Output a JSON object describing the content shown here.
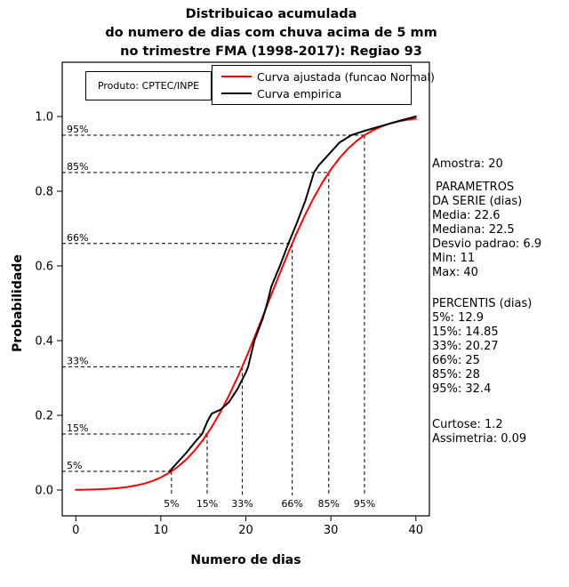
{
  "title": {
    "line1": "Distribuicao acumulada",
    "line2": "do numero de dias com chuva acima de 5 mm",
    "line3": "no trimestre FMA (1998-2017): Regiao 93"
  },
  "legend": {
    "product_label": "Produto: CPTEC/INPE",
    "entries": [
      {
        "key": "fitted",
        "label": "Curva ajustada (funcao Normal)",
        "color": "#ff0000"
      },
      {
        "key": "empirical",
        "label": "Curva empirica",
        "color": "#000000"
      }
    ]
  },
  "stats_panel": {
    "sample": "Amostra: 20",
    "params_header1": "PARAMETROS",
    "params_header2": "DA SERIE (dias)",
    "params": [
      "Media: 22.6",
      "Mediana: 22.5",
      "Desvio padrao: 6.9",
      "Min: 11",
      "Max: 40"
    ],
    "percentiles_header": "PERCENTIS (dias)",
    "percentiles": [
      "5%: 12.9",
      "15%: 14.85",
      "33%: 20.27",
      "66%: 25",
      "85%: 28",
      "95%: 32.4"
    ],
    "extra": [
      "Curtose: 1.2",
      "Assimetria: 0.09"
    ]
  },
  "axes": {
    "xlabel": "Numero de dias",
    "ylabel": "Probabilidade"
  },
  "chart_data": {
    "type": "line",
    "title": "Distribuicao acumulada do numero de dias com chuva acima de 5 mm no trimestre FMA (1998-2017): Regiao 93",
    "xlabel": "Numero de dias",
    "ylabel": "Probabilidade",
    "xlim": [
      0,
      40
    ],
    "ylim": [
      0,
      1
    ],
    "grid": false,
    "legend_position": "top",
    "x_ticks": [
      0,
      10,
      20,
      30,
      40
    ],
    "x_tick_labels": [
      "0",
      "10",
      "20",
      "30",
      "40"
    ],
    "y_ticks": [
      0.0,
      0.2,
      0.4,
      0.6,
      0.8,
      1.0
    ],
    "y_tick_labels": [
      "0.0",
      "0.2",
      "0.4",
      "0.6",
      "0.8",
      "1.0"
    ],
    "percentile_markers": [
      {
        "label": "5%",
        "prob": 0.05,
        "x": 11.25
      },
      {
        "label": "15%",
        "prob": 0.15,
        "x": 15.45
      },
      {
        "label": "33%",
        "prob": 0.33,
        "x": 19.57
      },
      {
        "label": "66%",
        "prob": 0.66,
        "x": 25.45
      },
      {
        "label": "85%",
        "prob": 0.85,
        "x": 29.75
      },
      {
        "label": "95%",
        "prob": 0.95,
        "x": 33.95
      }
    ],
    "series": [
      {
        "key": "fitted",
        "name": "Curva ajustada (funcao Normal)",
        "color": "#ff0000",
        "points": [
          [
            0,
            0.0005
          ],
          [
            1,
            0.0009
          ],
          [
            2,
            0.0014
          ],
          [
            3,
            0.0023
          ],
          [
            4,
            0.0035
          ],
          [
            5,
            0.0054
          ],
          [
            6,
            0.0081
          ],
          [
            7,
            0.0119
          ],
          [
            8,
            0.0172
          ],
          [
            9,
            0.0244
          ],
          [
            10,
            0.0339
          ],
          [
            11,
            0.0464
          ],
          [
            12,
            0.0623
          ],
          [
            13,
            0.0821
          ],
          [
            14,
            0.1064
          ],
          [
            15,
            0.1354
          ],
          [
            16,
            0.1694
          ],
          [
            17,
            0.2085
          ],
          [
            18,
            0.2524
          ],
          [
            19,
            0.3009
          ],
          [
            20,
            0.3531
          ],
          [
            21,
            0.4083
          ],
          [
            22,
            0.4654
          ],
          [
            23,
            0.5231
          ],
          [
            24,
            0.5804
          ],
          [
            25,
            0.6361
          ],
          [
            26,
            0.6889
          ],
          [
            27,
            0.7383
          ],
          [
            28,
            0.7832
          ],
          [
            29,
            0.8233
          ],
          [
            30,
            0.8581
          ],
          [
            31,
            0.8882
          ],
          [
            32,
            0.9135
          ],
          [
            33,
            0.9341
          ],
          [
            34,
            0.9507
          ],
          [
            35,
            0.9639
          ],
          [
            36,
            0.9739
          ],
          [
            37,
            0.9816
          ],
          [
            38,
            0.9872
          ],
          [
            39,
            0.9913
          ],
          [
            40,
            0.9942
          ]
        ]
      },
      {
        "key": "empirical",
        "name": "Curva empirica",
        "color": "#000000",
        "points": [
          [
            11,
            0.05
          ],
          [
            12,
            0.075
          ],
          [
            13,
            0.1
          ],
          [
            14,
            0.128
          ],
          [
            14.85,
            0.15
          ],
          [
            15.5,
            0.185
          ],
          [
            16,
            0.205
          ],
          [
            17,
            0.215
          ],
          [
            18,
            0.235
          ],
          [
            19,
            0.27
          ],
          [
            20,
            0.315
          ],
          [
            20.27,
            0.33
          ],
          [
            21,
            0.4
          ],
          [
            22,
            0.46
          ],
          [
            22.5,
            0.5
          ],
          [
            23,
            0.545
          ],
          [
            24,
            0.6
          ],
          [
            25,
            0.66
          ],
          [
            26,
            0.715
          ],
          [
            27,
            0.775
          ],
          [
            28,
            0.85
          ],
          [
            28.6,
            0.87
          ],
          [
            30,
            0.905
          ],
          [
            31,
            0.93
          ],
          [
            32.4,
            0.95
          ],
          [
            34,
            0.962
          ],
          [
            36,
            0.975
          ],
          [
            38,
            0.988
          ],
          [
            40,
            1.0
          ]
        ]
      }
    ]
  }
}
